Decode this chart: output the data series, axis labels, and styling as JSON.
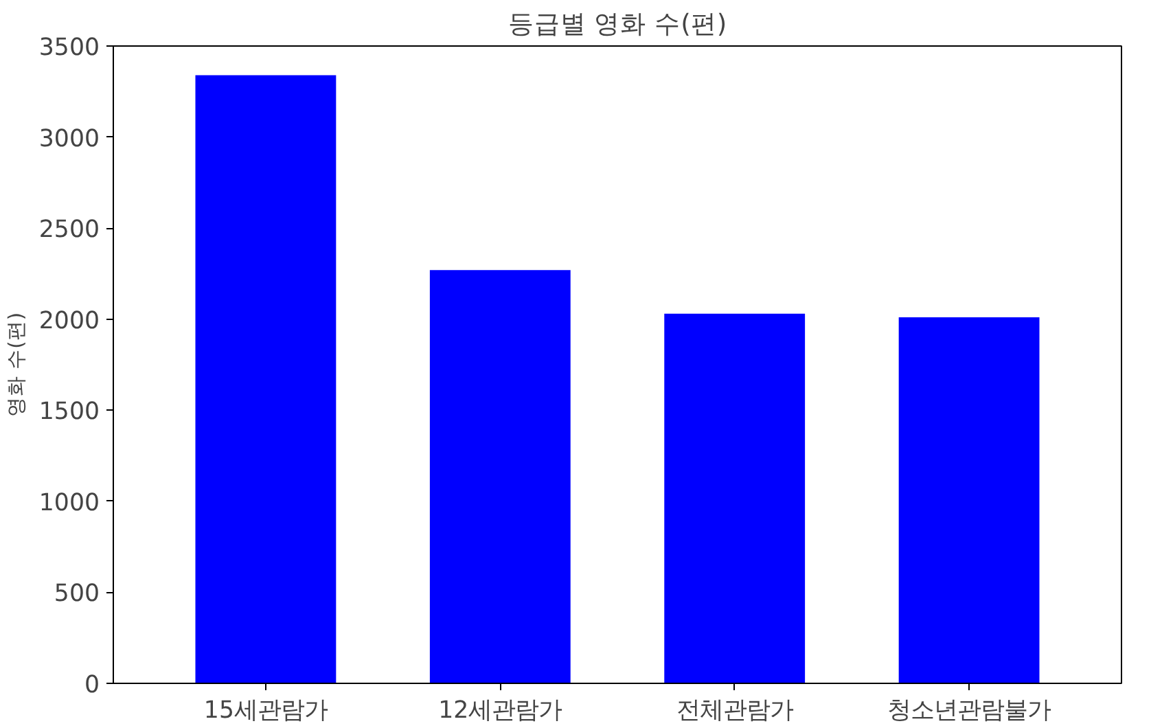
{
  "chart_data": {
    "type": "bar",
    "title": "등급별 영화 수(편)",
    "ylabel": "영화 수(편)",
    "categories": [
      "15세관람가",
      "12세관람가",
      "전체관람가",
      "청소년관람불가"
    ],
    "values": [
      3340,
      2270,
      2030,
      2010
    ],
    "color": "#0000ff",
    "ylim": [
      0,
      3500
    ],
    "yticks": [
      0,
      500,
      1000,
      1500,
      2000,
      2500,
      3000,
      3500
    ],
    "grid": false
  }
}
